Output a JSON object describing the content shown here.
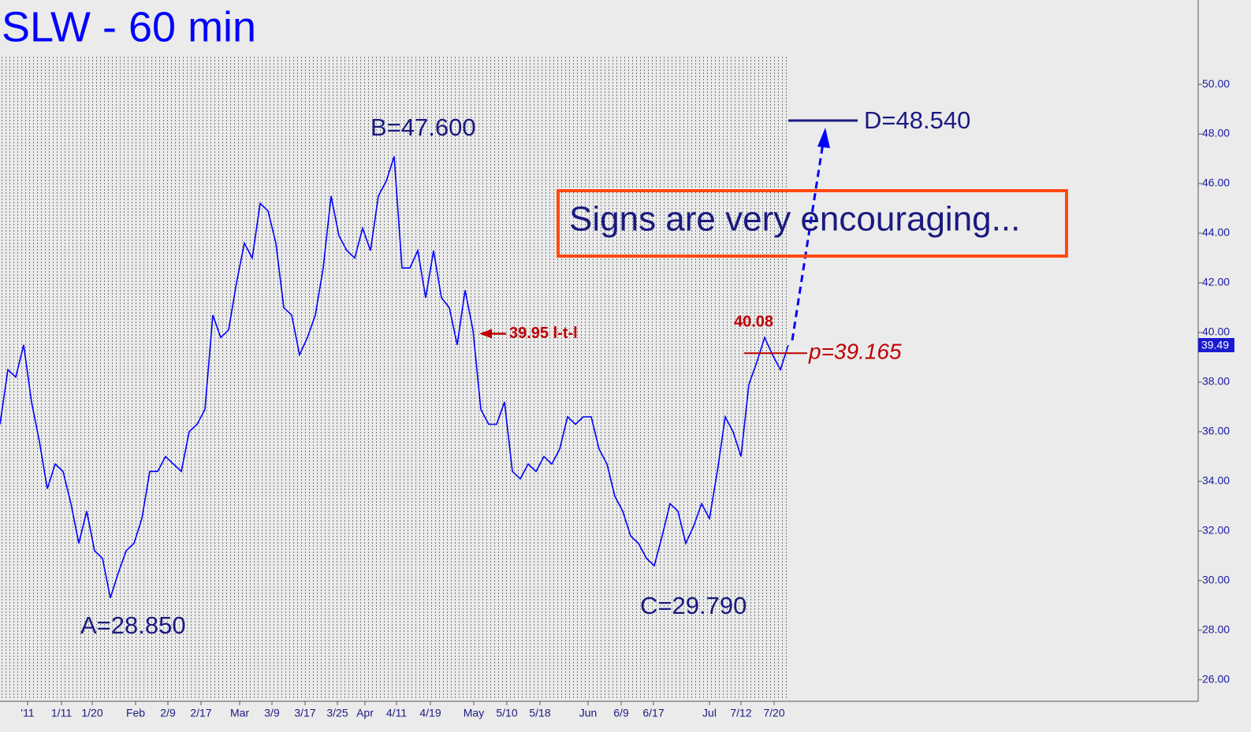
{
  "chart_data": {
    "type": "line",
    "title": "SLW - 60 min",
    "grid": true,
    "xlim": [
      0,
      100
    ],
    "ylim": [
      25.2,
      53.4
    ],
    "yticks": [
      {
        "value": 26,
        "label": "26.00"
      },
      {
        "value": 28,
        "label": "28.00"
      },
      {
        "value": 30,
        "label": "30.00"
      },
      {
        "value": 32,
        "label": "32.00"
      },
      {
        "value": 34,
        "label": "34.00"
      },
      {
        "value": 36,
        "label": "36.00"
      },
      {
        "value": 38,
        "label": "38.00"
      },
      {
        "value": 40,
        "label": "40.00"
      },
      {
        "value": 42,
        "label": "42.00"
      },
      {
        "value": 44,
        "label": "44.00"
      },
      {
        "value": 46,
        "label": "46.00"
      },
      {
        "value": 48,
        "label": "48.00"
      },
      {
        "value": 50,
        "label": "50.00"
      }
    ],
    "xticks": [
      {
        "value": 3.5,
        "label": "'11"
      },
      {
        "value": 7.8,
        "label": "1/11"
      },
      {
        "value": 11.7,
        "label": "1/20"
      },
      {
        "value": 17.2,
        "label": "Feb"
      },
      {
        "value": 21.3,
        "label": "2/9"
      },
      {
        "value": 25.5,
        "label": "2/17"
      },
      {
        "value": 30.4,
        "label": "Mar"
      },
      {
        "value": 34.5,
        "label": "3/9"
      },
      {
        "value": 38.7,
        "label": "3/17"
      },
      {
        "value": 42.8,
        "label": "3/25"
      },
      {
        "value": 46.3,
        "label": "Apr"
      },
      {
        "value": 50.3,
        "label": "4/11"
      },
      {
        "value": 54.6,
        "label": "4/19"
      },
      {
        "value": 60.1,
        "label": "May"
      },
      {
        "value": 64.3,
        "label": "5/10"
      },
      {
        "value": 68.5,
        "label": "5/18"
      },
      {
        "value": 74.6,
        "label": "Jun"
      },
      {
        "value": 78.8,
        "label": "6/9"
      },
      {
        "value": 82.9,
        "label": "6/17"
      },
      {
        "value": 90.0,
        "label": "Jul"
      },
      {
        "value": 94.0,
        "label": "7/12"
      },
      {
        "value": 98.2,
        "label": "7/20"
      }
    ],
    "series": [
      {
        "name": "SLW",
        "color": "#0000ff",
        "values": [
          36.3,
          38.5,
          38.2,
          39.5,
          37.2,
          35.6,
          33.7,
          34.7,
          34.4,
          33.1,
          31.5,
          32.8,
          31.2,
          30.9,
          29.3,
          30.3,
          31.2,
          31.5,
          32.5,
          34.4,
          34.4,
          35.0,
          34.7,
          34.4,
          36.0,
          36.3,
          36.9,
          40.7,
          39.8,
          40.1,
          42.0,
          43.6,
          43.0,
          45.2,
          44.9,
          43.6,
          41.0,
          40.7,
          39.1,
          39.8,
          40.7,
          42.6,
          45.5,
          43.9,
          43.3,
          43.0,
          44.2,
          43.3,
          45.5,
          46.1,
          47.1,
          42.6,
          42.6,
          43.3,
          41.4,
          43.3,
          41.4,
          41.0,
          39.5,
          41.7,
          40.1,
          36.9,
          36.3,
          36.3,
          37.2,
          34.4,
          34.1,
          34.7,
          34.4,
          35.0,
          34.7,
          35.3,
          36.6,
          36.3,
          36.6,
          36.6,
          35.3,
          34.7,
          33.4,
          32.8,
          31.8,
          31.5,
          30.9,
          30.6,
          31.8,
          33.1,
          32.8,
          31.5,
          32.2,
          33.1,
          32.5,
          34.4,
          36.6,
          36.0,
          35.0,
          37.9,
          38.8,
          39.8,
          39.1,
          38.5,
          39.49
        ]
      }
    ],
    "last_price": {
      "value": 39.49,
      "label": "39.49"
    },
    "annotations": {
      "a": "A=28.850",
      "b": "B=47.600",
      "c": "C=29.790",
      "d": {
        "value": 48.54,
        "label": "D=48.540"
      },
      "p": {
        "value": 39.165,
        "label": "p=39.165"
      },
      "ltl": {
        "value": 39.95,
        "label": "39.95 l-t-l"
      },
      "high": "40.08",
      "note": "Signs are very encouraging..."
    }
  }
}
